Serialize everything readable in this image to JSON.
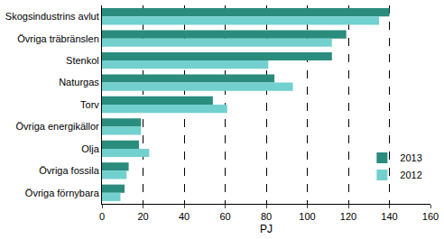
{
  "chart_data": {
    "type": "bar",
    "orientation": "horizontal",
    "categories": [
      "Skogsindustrins avlut",
      "Övriga träbränslen",
      "Stenkol",
      "Naturgas",
      "Torv",
      "Övriga energikällor",
      "Olja",
      "Övriga fossila",
      "Övriga förnybara"
    ],
    "series": [
      {
        "name": "2013",
        "color": "#2a8c7c",
        "values": [
          140,
          119,
          112,
          84,
          54,
          19,
          18,
          13,
          11
        ]
      },
      {
        "name": "2012",
        "color": "#72d0cf",
        "values": [
          135,
          112,
          81,
          93,
          61,
          19,
          23,
          12,
          9
        ]
      }
    ],
    "x_label": "PJ",
    "xlim": [
      0,
      160
    ],
    "xticks": [
      0,
      20,
      40,
      60,
      80,
      100,
      120,
      140,
      160
    ],
    "grid": true,
    "legend": "lower right"
  }
}
